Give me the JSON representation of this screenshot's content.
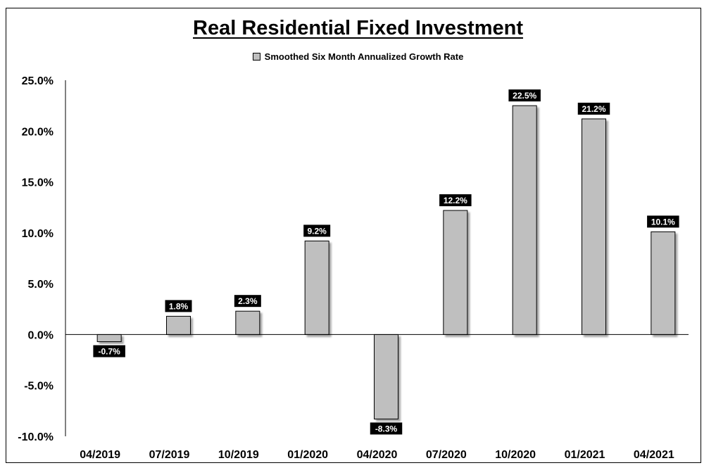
{
  "chart_data": {
    "type": "bar",
    "title": "Real Residential Fixed Investment",
    "categories": [
      "04/2019",
      "07/2019",
      "10/2019",
      "01/2020",
      "04/2020",
      "07/2020",
      "10/2020",
      "01/2021",
      "04/2021"
    ],
    "series": [
      {
        "name": "Smoothed Six Month Annualized Growth Rate",
        "values": [
          -0.7,
          1.8,
          2.3,
          9.2,
          -8.3,
          12.2,
          22.5,
          21.2,
          10.1
        ],
        "data_labels": [
          "-0.7%",
          "1.8%",
          "2.3%",
          "9.2%",
          "-8.3%",
          "12.2%",
          "22.5%",
          "21.2%",
          "10.1%"
        ],
        "color": "#bfbfbf"
      }
    ],
    "ylim": [
      -10,
      25
    ],
    "yticks": [
      25,
      20,
      15,
      10,
      5,
      0,
      -5,
      -10
    ],
    "ytick_labels": [
      "25.0%",
      "20.0%",
      "15.0%",
      "10.0%",
      "5.0%",
      "0.0%",
      "-5.0%",
      "-10.0%"
    ],
    "xlabel": "",
    "ylabel": "",
    "grid": false,
    "legend_position": "top-center",
    "label_background": "#000000",
    "label_text_color": "#ffffff"
  }
}
